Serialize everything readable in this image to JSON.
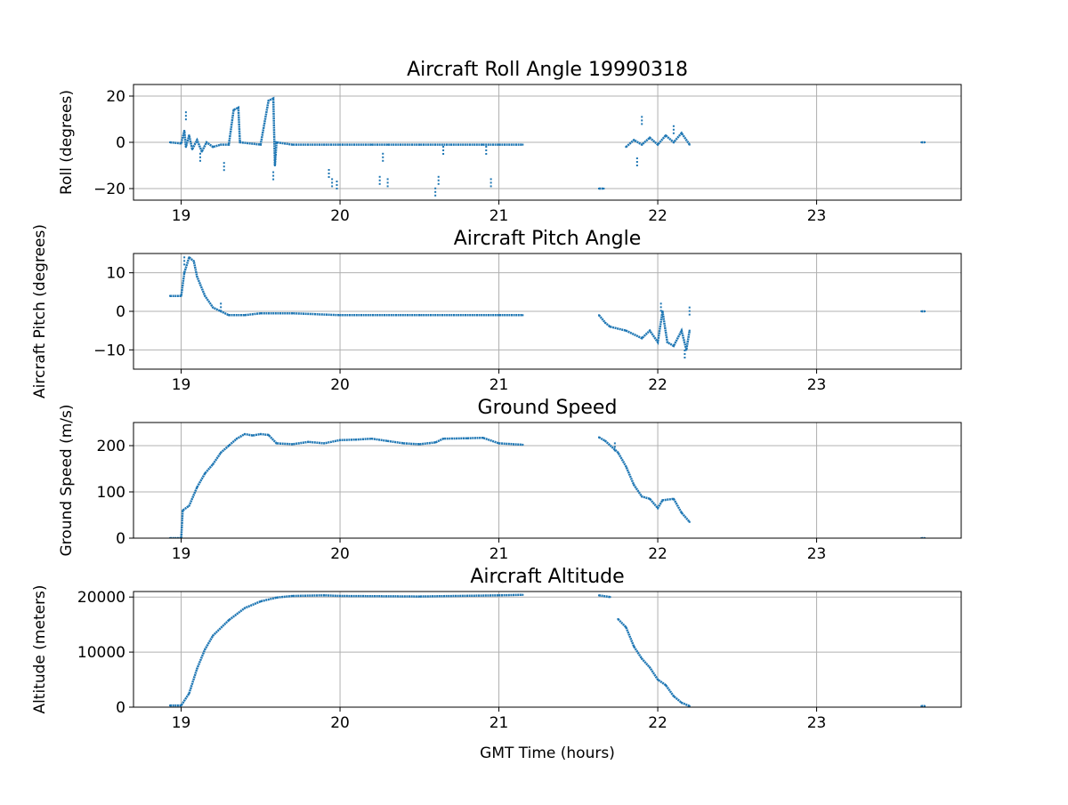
{
  "chart_data": {
    "type": "scatter",
    "xlabel": "GMT Time (hours)",
    "xlim": [
      18.7,
      23.91
    ],
    "xticks": [
      19,
      20,
      21,
      22,
      23
    ],
    "grid": true,
    "color": "#1f77b4",
    "panels": [
      {
        "title": "Aircraft Roll Angle 19990318",
        "ylabel": "Roll (degrees)",
        "ylim": [
          -25,
          25
        ],
        "yticks": [
          20,
          0,
          -20
        ],
        "segments": [
          [
            [
              18.93,
              0
            ],
            [
              19.0,
              -0.5
            ],
            [
              19.02,
              5
            ],
            [
              19.03,
              -2
            ],
            [
              19.05,
              3
            ],
            [
              19.07,
              -3
            ],
            [
              19.1,
              1
            ],
            [
              19.13,
              -4
            ],
            [
              19.16,
              0
            ],
            [
              19.2,
              -2
            ],
            [
              19.25,
              -1
            ],
            [
              19.3,
              -1
            ],
            [
              19.33,
              14
            ],
            [
              19.36,
              15
            ],
            [
              19.37,
              0
            ],
            [
              19.5,
              -1
            ],
            [
              19.55,
              18
            ],
            [
              19.58,
              19
            ],
            [
              19.59,
              -10
            ],
            [
              19.6,
              0
            ],
            [
              19.7,
              -1
            ],
            [
              19.9,
              -1
            ],
            [
              20.0,
              -1
            ],
            [
              20.2,
              -1
            ],
            [
              20.3,
              -1
            ],
            [
              20.5,
              -1
            ],
            [
              20.7,
              -1
            ],
            [
              20.9,
              -1
            ],
            [
              21.0,
              -1
            ],
            [
              21.15,
              -1
            ]
          ],
          [
            [
              21.63,
              -20
            ],
            [
              21.66,
              -20
            ]
          ],
          [
            [
              21.8,
              -2
            ],
            [
              21.85,
              1
            ],
            [
              21.9,
              -1
            ],
            [
              21.95,
              2
            ],
            [
              22.0,
              -1
            ],
            [
              22.05,
              3
            ],
            [
              22.1,
              0
            ],
            [
              22.15,
              4
            ],
            [
              22.2,
              -1
            ]
          ],
          [
            [
              23.66,
              0
            ],
            [
              23.68,
              0
            ]
          ]
        ],
        "points": [
          [
            19.03,
            13
          ],
          [
            19.12,
            -8
          ],
          [
            19.27,
            -12
          ],
          [
            19.58,
            -16
          ],
          [
            19.93,
            -15
          ],
          [
            19.95,
            -19
          ],
          [
            19.98,
            -20
          ],
          [
            20.25,
            -18
          ],
          [
            20.27,
            -8
          ],
          [
            20.3,
            -19
          ],
          [
            20.62,
            -18
          ],
          [
            20.6,
            -23
          ],
          [
            20.65,
            -5
          ],
          [
            20.95,
            -19
          ],
          [
            20.92,
            -5
          ],
          [
            21.87,
            -10
          ],
          [
            21.9,
            11
          ],
          [
            22.1,
            7
          ]
        ]
      },
      {
        "title": "Aircraft Pitch Angle",
        "ylabel": "Aircraft Pitch (degrees)",
        "ylim": [
          -15,
          15
        ],
        "yticks": [
          10,
          0,
          -10
        ],
        "segments": [
          [
            [
              18.93,
              4
            ],
            [
              19.0,
              4
            ],
            [
              19.02,
              10
            ],
            [
              19.05,
              14
            ],
            [
              19.08,
              13
            ],
            [
              19.1,
              9
            ],
            [
              19.15,
              4
            ],
            [
              19.2,
              1
            ],
            [
              19.25,
              0
            ],
            [
              19.3,
              -1
            ],
            [
              19.4,
              -1
            ],
            [
              19.5,
              -0.5
            ],
            [
              19.7,
              -0.5
            ],
            [
              20.0,
              -1
            ],
            [
              20.5,
              -1
            ],
            [
              21.0,
              -1
            ],
            [
              21.15,
              -1
            ]
          ],
          [
            [
              21.63,
              -1
            ],
            [
              21.67,
              -3
            ],
            [
              21.7,
              -4
            ],
            [
              21.8,
              -5
            ],
            [
              21.9,
              -7
            ],
            [
              21.95,
              -5
            ],
            [
              22.0,
              -8
            ],
            [
              22.03,
              0
            ],
            [
              22.06,
              -8
            ],
            [
              22.1,
              -9
            ],
            [
              22.15,
              -5
            ],
            [
              22.18,
              -10
            ],
            [
              22.2,
              -5
            ]
          ],
          [
            [
              23.66,
              0
            ],
            [
              23.68,
              0
            ]
          ]
        ],
        "points": [
          [
            19.02,
            14
          ],
          [
            19.25,
            2
          ],
          [
            22.02,
            2
          ],
          [
            22.2,
            1
          ],
          [
            22.17,
            -12
          ]
        ]
      },
      {
        "title": "Ground Speed",
        "ylabel": "Ground Speed (m/s)",
        "ylim": [
          0,
          250
        ],
        "yticks": [
          200,
          100,
          0
        ],
        "segments": [
          [
            [
              18.93,
              0
            ],
            [
              19.0,
              0
            ],
            [
              19.01,
              60
            ],
            [
              19.05,
              70
            ],
            [
              19.1,
              110
            ],
            [
              19.15,
              140
            ],
            [
              19.2,
              160
            ],
            [
              19.25,
              185
            ],
            [
              19.3,
              200
            ],
            [
              19.35,
              215
            ],
            [
              19.4,
              225
            ],
            [
              19.45,
              222
            ],
            [
              19.5,
              225
            ],
            [
              19.55,
              223
            ],
            [
              19.6,
              205
            ],
            [
              19.7,
              203
            ],
            [
              19.8,
              208
            ],
            [
              19.9,
              205
            ],
            [
              20.0,
              212
            ],
            [
              20.1,
              213
            ],
            [
              20.2,
              215
            ],
            [
              20.3,
              210
            ],
            [
              20.4,
              205
            ],
            [
              20.5,
              203
            ],
            [
              20.6,
              207
            ],
            [
              20.65,
              215
            ],
            [
              20.8,
              216
            ],
            [
              20.9,
              217
            ],
            [
              21.0,
              205
            ],
            [
              21.15,
              202
            ]
          ],
          [
            [
              21.63,
              218
            ],
            [
              21.67,
              210
            ],
            [
              21.75,
              185
            ],
            [
              21.8,
              155
            ],
            [
              21.85,
              115
            ],
            [
              21.9,
              90
            ],
            [
              21.95,
              85
            ],
            [
              22.0,
              65
            ],
            [
              22.03,
              82
            ],
            [
              22.1,
              85
            ],
            [
              22.15,
              55
            ],
            [
              22.2,
              35
            ]
          ],
          [
            [
              23.66,
              0
            ],
            [
              23.68,
              0
            ]
          ]
        ],
        "points": [
          [
            21.73,
            205
          ]
        ]
      },
      {
        "title": "Aircraft Altitude",
        "ylabel": "Altitude (meters)",
        "ylim": [
          0,
          21000
        ],
        "yticks": [
          20000,
          10000,
          0
        ],
        "segments": [
          [
            [
              18.93,
              300
            ],
            [
              19.0,
              300
            ],
            [
              19.05,
              2500
            ],
            [
              19.1,
              7000
            ],
            [
              19.15,
              10500
            ],
            [
              19.2,
              13000
            ],
            [
              19.3,
              15800
            ],
            [
              19.4,
              18000
            ],
            [
              19.5,
              19200
            ],
            [
              19.6,
              19900
            ],
            [
              19.7,
              20200
            ],
            [
              19.9,
              20300
            ],
            [
              20.0,
              20200
            ],
            [
              20.5,
              20100
            ],
            [
              21.0,
              20300
            ],
            [
              21.15,
              20400
            ]
          ],
          [
            [
              21.63,
              20300
            ],
            [
              21.7,
              20000
            ]
          ],
          [
            [
              21.75,
              16000
            ],
            [
              21.8,
              14500
            ],
            [
              21.85,
              11000
            ],
            [
              21.9,
              8800
            ],
            [
              21.95,
              7200
            ],
            [
              22.0,
              5000
            ],
            [
              22.05,
              4000
            ],
            [
              22.1,
              2000
            ],
            [
              22.15,
              800
            ],
            [
              22.2,
              200
            ]
          ],
          [
            [
              23.66,
              200
            ],
            [
              23.68,
              200
            ]
          ]
        ],
        "points": []
      }
    ]
  }
}
